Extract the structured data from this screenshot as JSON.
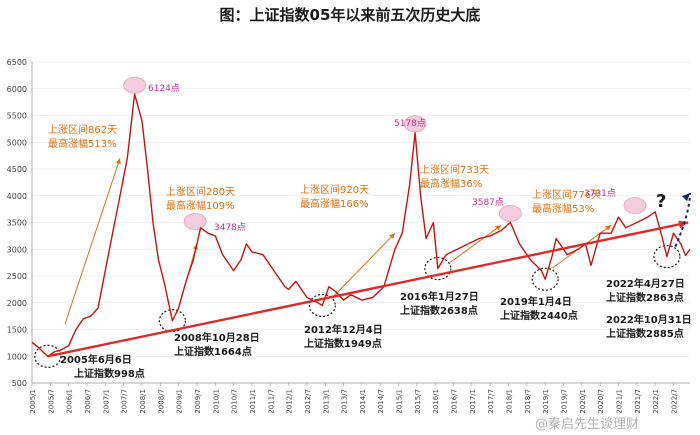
{
  "title": "图：上证指数05年以来前五次历史大底",
  "watermark": "@秦启先生谈理财",
  "colors": {
    "line": "#cc1111",
    "trend": "#dd2a2a",
    "orange": "#e07010",
    "peak": "#cc2e8a",
    "peakFill": "#f3c6d8",
    "dark": "#1a1a1a"
  },
  "chart_data": {
    "type": "line",
    "ylim": [
      500,
      6500
    ],
    "yticks": [
      "500",
      "1000",
      "1500",
      "2000",
      "2500",
      "3000",
      "3500",
      "4000",
      "4500",
      "5000",
      "5500",
      "6000",
      "6500"
    ],
    "xticks": [
      "2005/1",
      "2005/7",
      "2006/1",
      "2006/7",
      "2007/1",
      "2007/7",
      "2008/1",
      "2008/7",
      "2009/1",
      "2009/7",
      "2010/1",
      "2010/7",
      "2011/1",
      "2011/7",
      "2012/1",
      "2012/7",
      "2013/1",
      "2013/7",
      "2014/1",
      "2014/7",
      "2015/1",
      "2015/7",
      "2016/1",
      "2016/7",
      "2017/1",
      "2017/7",
      "2018/1",
      "2018/7",
      "2019/1",
      "2019/7",
      "2020/1",
      "2020/7",
      "2021/1",
      "2021/7",
      "2022/1",
      "2022/7"
    ],
    "series": [
      {
        "x": [
          2005.0,
          2005.2,
          2005.35,
          2005.43,
          2005.6,
          2005.8,
          2006.0,
          2006.2,
          2006.4,
          2006.6,
          2006.8,
          2007.0,
          2007.2,
          2007.4,
          2007.6,
          2007.8,
          2008.0,
          2008.15,
          2008.3,
          2008.45,
          2008.6,
          2008.83,
          2009.0,
          2009.2,
          2009.4,
          2009.6,
          2009.8,
          2010.0,
          2010.2,
          2010.5,
          2010.7,
          2010.85,
          2011.0,
          2011.3,
          2011.6,
          2011.9,
          2012.0,
          2012.2,
          2012.5,
          2012.8,
          2012.92,
          2013.1,
          2013.3,
          2013.5,
          2013.7,
          2014.0,
          2014.3,
          2014.6,
          2014.9,
          2015.1,
          2015.3,
          2015.45,
          2015.6,
          2015.75,
          2015.95,
          2016.07,
          2016.3,
          2016.6,
          2016.9,
          2017.2,
          2017.5,
          2017.8,
          2018.05,
          2018.3,
          2018.6,
          2018.9,
          2019.0,
          2019.2,
          2019.3,
          2019.6,
          2019.9,
          2020.1,
          2020.25,
          2020.5,
          2020.8,
          2021.0,
          2021.2,
          2021.5,
          2021.8,
          2022.0,
          2022.2,
          2022.32,
          2022.5,
          2022.7,
          2022.83,
          2022.95
        ],
        "y": [
          1260,
          1150,
          1050,
          998,
          1080,
          1120,
          1200,
          1500,
          1700,
          1750,
          1900,
          2600,
          3300,
          4000,
          4700,
          5900,
          5400,
          4500,
          3500,
          2800,
          2400,
          1664,
          1900,
          2400,
          2800,
          3400,
          3300,
          3250,
          2900,
          2600,
          2800,
          3100,
          2950,
          2900,
          2600,
          2300,
          2250,
          2400,
          2100,
          2000,
          1949,
          2300,
          2200,
          2050,
          2150,
          2050,
          2100,
          2300,
          3000,
          3300,
          4200,
          5178,
          4000,
          3200,
          3500,
          2638,
          2900,
          3000,
          3100,
          3200,
          3250,
          3350,
          3500,
          3100,
          2800,
          2600,
          2440,
          2900,
          3200,
          2900,
          3000,
          3100,
          2700,
          3300,
          3300,
          3600,
          3400,
          3500,
          3600,
          3700,
          3200,
          2863,
          3300,
          3100,
          2885,
          3000
        ]
      }
    ],
    "annotations": {
      "peaks": [
        "6124点",
        "5178点",
        "3478点",
        "3587点",
        "3731点"
      ],
      "bottoms": [
        "2005年6月6日",
        "上证指数998点",
        "2008年10月28日",
        "上证指数1664点",
        "2012年12月4日",
        "上证指数1949点",
        "2016年1月27日",
        "上证指数2638点",
        "2019年1月4日",
        "上证指数2440点",
        "2022年4月27日",
        "上证指数2863点",
        "2022年10月31日",
        "上证指数2885点"
      ],
      "rallies": [
        "上涨区间862天",
        "最高涨幅513%",
        "上涨区间280天",
        "最高涨幅109%",
        "上涨区间920天",
        "最高涨幅166%",
        "上涨区间733天",
        "最高涨幅36%",
        "上涨区间776天",
        "最高涨幅53%"
      ],
      "question": "?"
    }
  }
}
